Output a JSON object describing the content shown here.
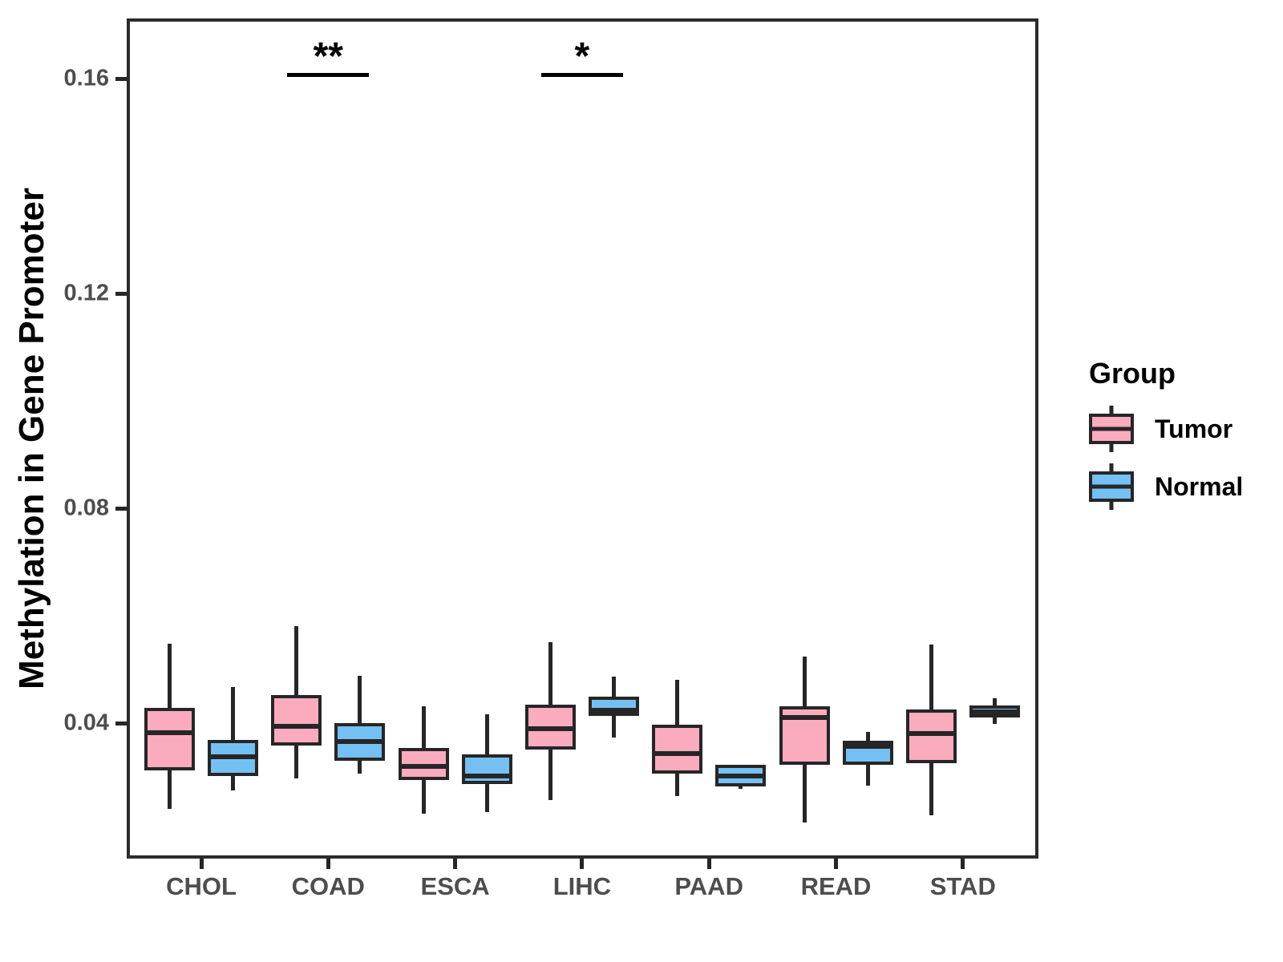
{
  "figure": {
    "background": "#FFFFFF",
    "y_axis": {
      "title": "Methylation in Gene Promoter"
    },
    "legend": {
      "title": "Group",
      "items": [
        {
          "label": "Tumor",
          "color": "#FAABBE"
        },
        {
          "label": "Normal",
          "color": "#74C0F3"
        }
      ]
    }
  },
  "colors": {
    "tumor_fill": "#FAABBE",
    "normal_fill": "#74C0F3",
    "box_stroke": "#262626",
    "panel_border": "#2B2B2B",
    "axis_text": "#4D4D4D",
    "title_text": "#000000",
    "significance": "#000000"
  },
  "chart_data": {
    "type": "boxplot",
    "title": "",
    "xlabel": "",
    "ylabel": "Methylation in Gene Promoter",
    "categories": [
      "CHOL",
      "COAD",
      "ESCA",
      "LIHC",
      "PAAD",
      "READ",
      "STAD"
    ],
    "ylim": [
      0.0148,
      0.1712
    ],
    "yticks": [
      0.04,
      0.08,
      0.12,
      0.16
    ],
    "ytick_labels": [
      "0.04",
      "0.08",
      "0.12",
      "0.16"
    ],
    "grid": false,
    "legend_position": "right",
    "series": [
      {
        "name": "Tumor",
        "color": "#FAABBE",
        "boxes": [
          {
            "category": "CHOL",
            "whisker_low": 0.024,
            "q1": 0.0312,
            "median": 0.0382,
            "q3": 0.0429,
            "whisker_high": 0.0548
          },
          {
            "category": "COAD",
            "whisker_low": 0.0297,
            "q1": 0.0359,
            "median": 0.0394,
            "q3": 0.0452,
            "whisker_high": 0.0581
          },
          {
            "category": "ESCA",
            "whisker_low": 0.0232,
            "q1": 0.0294,
            "median": 0.0319,
            "q3": 0.0354,
            "whisker_high": 0.0432
          },
          {
            "category": "LIHC",
            "whisker_low": 0.0257,
            "q1": 0.0351,
            "median": 0.039,
            "q3": 0.0434,
            "whisker_high": 0.0551
          },
          {
            "category": "PAAD",
            "whisker_low": 0.0265,
            "q1": 0.0306,
            "median": 0.0343,
            "q3": 0.0397,
            "whisker_high": 0.0481
          },
          {
            "category": "READ",
            "whisker_low": 0.0215,
            "q1": 0.0322,
            "median": 0.041,
            "q3": 0.0432,
            "whisker_high": 0.0524
          },
          {
            "category": "STAD",
            "whisker_low": 0.0228,
            "q1": 0.0325,
            "median": 0.0381,
            "q3": 0.0426,
            "whisker_high": 0.0546
          }
        ]
      },
      {
        "name": "Normal",
        "color": "#74C0F3",
        "boxes": [
          {
            "category": "CHOL",
            "whisker_low": 0.0275,
            "q1": 0.0302,
            "median": 0.0337,
            "q3": 0.0369,
            "whisker_high": 0.0467
          },
          {
            "category": "COAD",
            "whisker_low": 0.0306,
            "q1": 0.033,
            "median": 0.0366,
            "q3": 0.04,
            "whisker_high": 0.0488
          },
          {
            "category": "ESCA",
            "whisker_low": 0.0235,
            "q1": 0.0287,
            "median": 0.0302,
            "q3": 0.0342,
            "whisker_high": 0.0416
          },
          {
            "category": "LIHC",
            "whisker_low": 0.0374,
            "q1": 0.0414,
            "median": 0.0423,
            "q3": 0.0449,
            "whisker_high": 0.0487
          },
          {
            "category": "PAAD",
            "whisker_low": 0.0278,
            "q1": 0.0283,
            "median": 0.0302,
            "q3": 0.0322,
            "whisker_high": 0.0322
          },
          {
            "category": "READ",
            "whisker_low": 0.0284,
            "q1": 0.0322,
            "median": 0.0363,
            "q3": 0.0368,
            "whisker_high": 0.0384
          },
          {
            "category": "STAD",
            "whisker_low": 0.0398,
            "q1": 0.041,
            "median": 0.0421,
            "q3": 0.0433,
            "whisker_high": 0.0446
          }
        ]
      }
    ],
    "significance_annotations": [
      {
        "category": "COAD",
        "label": "**",
        "bar_value": 0.1607
      },
      {
        "category": "LIHC",
        "label": "*",
        "bar_value": 0.1607
      }
    ]
  }
}
